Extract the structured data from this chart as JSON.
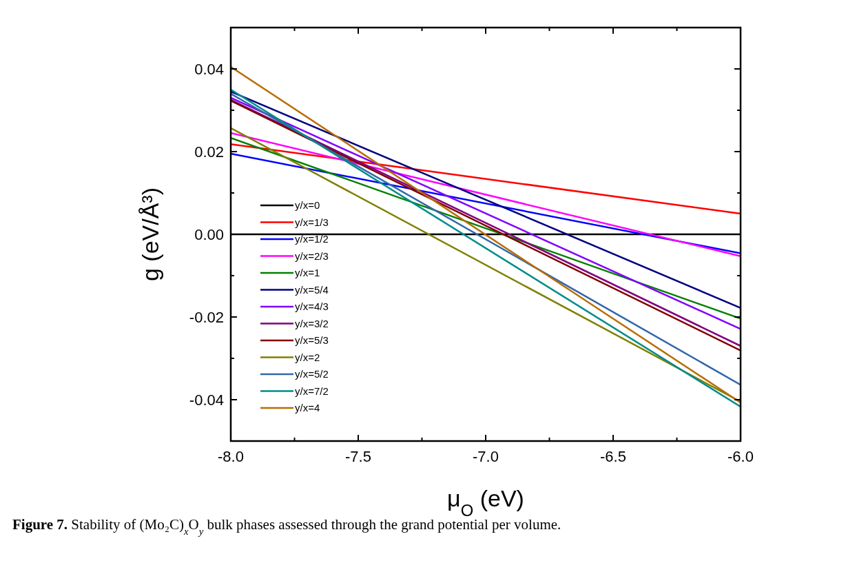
{
  "chart_data": {
    "type": "line",
    "xlabel": "μ$_{O}$ (eV)",
    "ylabel": "g (eV/Å³)",
    "x": [
      -8,
      -6
    ],
    "xlim": [
      -8,
      -6
    ],
    "ylim": [
      -0.05,
      0.05
    ],
    "xticks": [
      {
        "value": -8,
        "label": "-8.0"
      },
      {
        "value": -7.75,
        "label": null
      },
      {
        "value": -7.5,
        "label": "-7.5"
      },
      {
        "value": -7.25,
        "label": null
      },
      {
        "value": -7,
        "label": "-7.0"
      },
      {
        "value": -6.75,
        "label": null
      },
      {
        "value": -6.5,
        "label": "-6.5"
      },
      {
        "value": -6.25,
        "label": null
      },
      {
        "value": -6,
        "label": "-6.0"
      }
    ],
    "yticks": [
      {
        "value": -0.05,
        "label": null
      },
      {
        "value": -0.04,
        "label": "-0.04"
      },
      {
        "value": -0.03,
        "label": null
      },
      {
        "value": -0.02,
        "label": "-0.02"
      },
      {
        "value": -0.01,
        "label": null
      },
      {
        "value": 0,
        "label": "0.00"
      },
      {
        "value": 0.01,
        "label": null
      },
      {
        "value": 0.02,
        "label": "0.02"
      },
      {
        "value": 0.03,
        "label": null
      },
      {
        "value": 0.04,
        "label": "0.04"
      },
      {
        "value": 0.05,
        "label": null
      }
    ],
    "legend": "left",
    "marker": "none",
    "line_style": "solid",
    "series": [
      {
        "name": "y/x=0",
        "color": "#000000",
        "values": [
          0,
          0
        ]
      },
      {
        "name": "y/x=1/3",
        "color": "#ff0000",
        "values": [
          0.0218,
          0.005
        ]
      },
      {
        "name": "y/x=1/2",
        "color": "#0000ff",
        "values": [
          0.0195,
          -0.0046
        ]
      },
      {
        "name": "y/x=2/3",
        "color": "#ff00ff",
        "values": [
          0.0245,
          -0.0053
        ]
      },
      {
        "name": "y/x=1",
        "color": "#008000",
        "values": [
          0.0233,
          -0.0204
        ]
      },
      {
        "name": "y/x=5/4",
        "color": "#000080",
        "values": [
          0.0345,
          -0.0178
        ]
      },
      {
        "name": "y/x=4/3",
        "color": "#8000ff",
        "values": [
          0.033,
          -0.0229
        ]
      },
      {
        "name": "y/x=3/2",
        "color": "#800080",
        "values": [
          0.0325,
          -0.027
        ]
      },
      {
        "name": "y/x=5/3",
        "color": "#800000",
        "values": [
          0.0323,
          -0.0281
        ]
      },
      {
        "name": "y/x=2",
        "color": "#808000",
        "values": [
          0.0257,
          -0.0405
        ]
      },
      {
        "name": "y/x=5/2",
        "color": "#3366aa",
        "values": [
          0.034,
          -0.0364
        ]
      },
      {
        "name": "y/x=7/2",
        "color": "#008b8b",
        "values": [
          0.035,
          -0.0417
        ]
      },
      {
        "name": "y/x=4",
        "color": "#b86c00",
        "values": [
          0.0405,
          -0.0407
        ]
      }
    ],
    "annotations": [
      "Figure 7.  Stability of (Mo₂C)$_{x}$O$_{y}$ bulk phases assessed through the grand potential per volume."
    ]
  }
}
